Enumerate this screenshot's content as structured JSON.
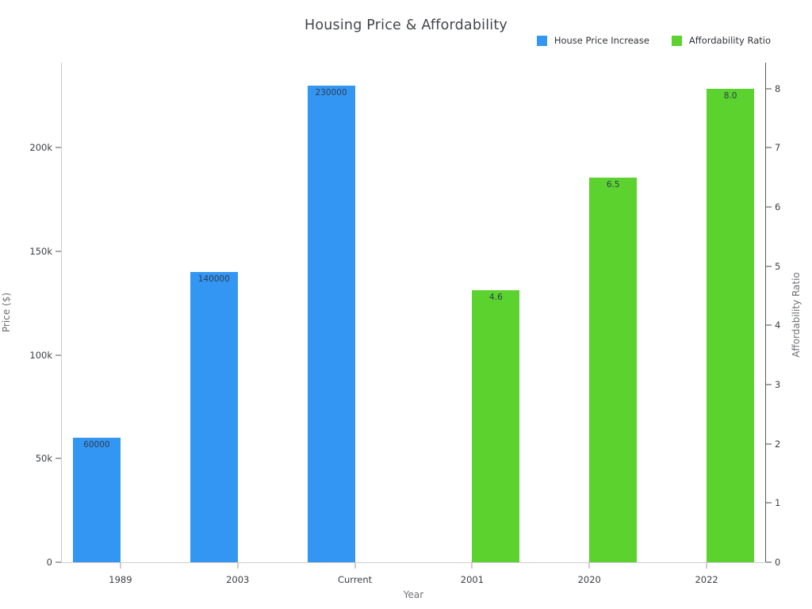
{
  "title": "Housing Price & Affordability",
  "chart_data": {
    "type": "bar",
    "title": "Housing Price & Affordability",
    "xlabel": "Year",
    "ylabel_left": "Price ($)",
    "ylabel_right": "Affordability Ratio",
    "categories": [
      "1989",
      "2003",
      "Current",
      "2001",
      "2020",
      "2022"
    ],
    "series": [
      {
        "name": "House Price Increase",
        "axis": "left",
        "color": "#3496f3",
        "values": [
          60000,
          140000,
          230000,
          null,
          null,
          null
        ],
        "value_labels": [
          "60000",
          "140000",
          "230000",
          null,
          null,
          null
        ]
      },
      {
        "name": "Affordability Ratio",
        "axis": "right",
        "color": "#5bd22e",
        "values": [
          null,
          null,
          null,
          4.6,
          6.5,
          8.0
        ],
        "value_labels": [
          null,
          null,
          null,
          "4.6",
          "6.5",
          "8.0"
        ]
      }
    ],
    "left_axis": {
      "max": 241000,
      "ticks": [
        {
          "v": 0,
          "label": "0"
        },
        {
          "v": 50000,
          "label": "50k"
        },
        {
          "v": 100000,
          "label": "100k"
        },
        {
          "v": 150000,
          "label": "150k"
        },
        {
          "v": 200000,
          "label": "200k"
        }
      ]
    },
    "right_axis": {
      "max": 8.44,
      "ticks": [
        {
          "v": 0,
          "label": "0"
        },
        {
          "v": 1,
          "label": "1"
        },
        {
          "v": 2,
          "label": "2"
        },
        {
          "v": 3,
          "label": "3"
        },
        {
          "v": 4,
          "label": "4"
        },
        {
          "v": 5,
          "label": "5"
        },
        {
          "v": 6,
          "label": "6"
        },
        {
          "v": 7,
          "label": "7"
        },
        {
          "v": 8,
          "label": "8"
        }
      ]
    },
    "legend_position": "top-right",
    "grid": false,
    "background": "#ffffff"
  }
}
